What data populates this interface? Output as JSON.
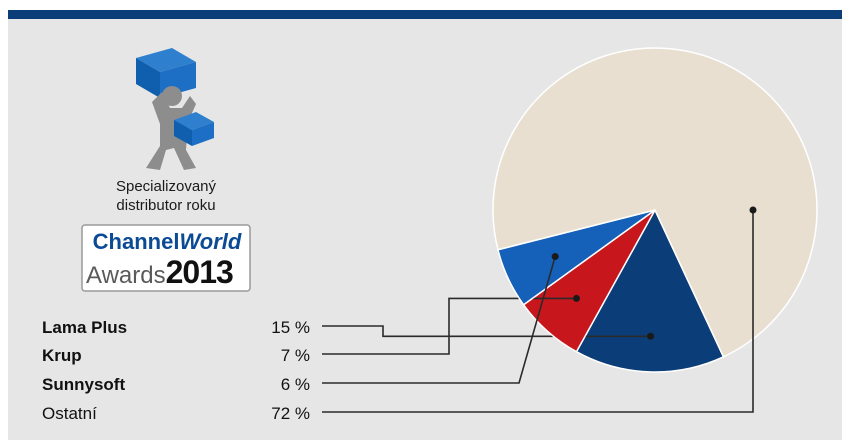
{
  "award": {
    "caption_line1": "Specializovaný",
    "caption_line2": "distributor roku",
    "brand_plain": "Channel",
    "brand_italic": "World",
    "awards_word": "Awards",
    "year": "2013"
  },
  "colors": {
    "top_bar": "#0b3d78",
    "panel_bg": "#e6e6e6",
    "leader_line": "#2a2a2a"
  },
  "chart_data": {
    "type": "pie",
    "unit": "%",
    "slices": [
      {
        "label": "Lama Plus",
        "value": 15,
        "display": "15 %",
        "color": "#0b3d78",
        "bold": true
      },
      {
        "label": "Krup",
        "value": 7,
        "display": "7 %",
        "color": "#c8161d",
        "bold": true
      },
      {
        "label": "Sunnysoft",
        "value": 6,
        "display": "6 %",
        "color": "#1560b8",
        "bold": true
      },
      {
        "label": "Ostatní",
        "value": 72,
        "display": "72 %",
        "color": "#e8dfd0",
        "bold": false
      }
    ]
  }
}
